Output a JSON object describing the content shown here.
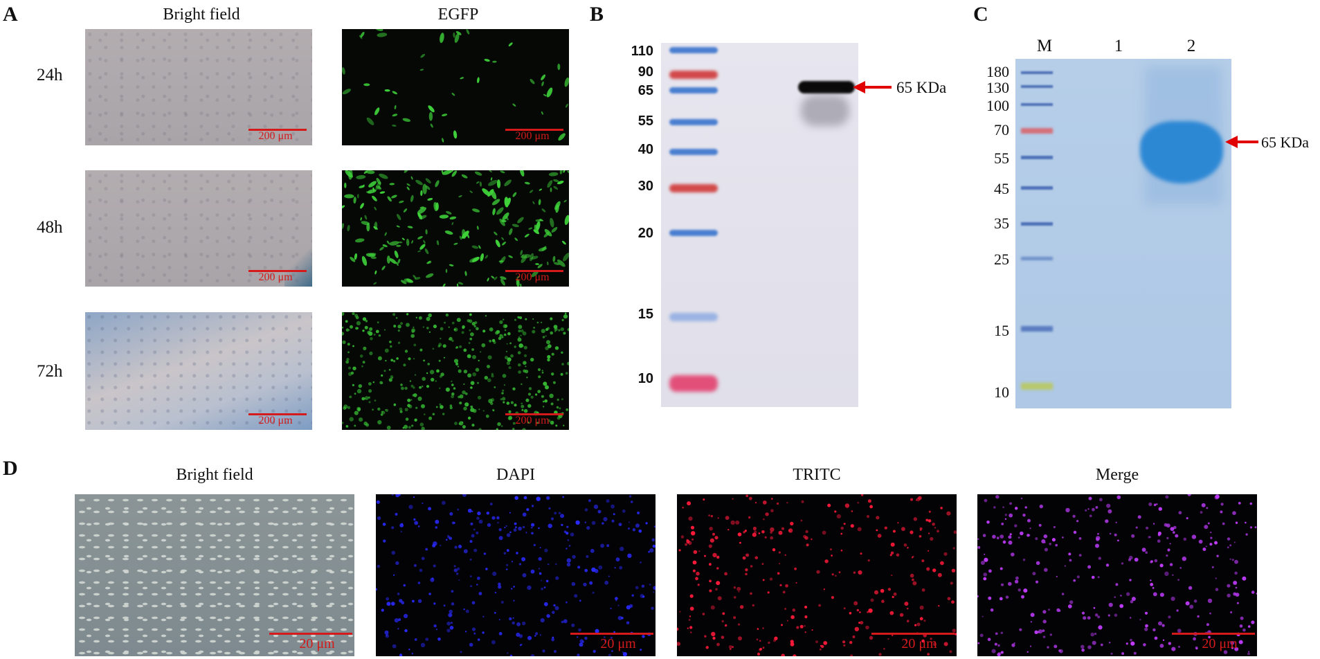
{
  "panels": {
    "A": {
      "letter": "A",
      "columns": [
        "Bright field",
        "EGFP"
      ],
      "rows": [
        "24h",
        "48h",
        "72h"
      ],
      "scale_bar": "200 μm"
    },
    "B": {
      "letter": "B",
      "markers": [
        "110",
        "90",
        "65",
        "55",
        "40",
        "30",
        "20",
        "15",
        "10"
      ],
      "band_label": "65 KDa"
    },
    "C": {
      "letter": "C",
      "lanes": [
        "M",
        "1",
        "2"
      ],
      "markers": [
        "180",
        "130",
        "100",
        "70",
        "55",
        "45",
        "35",
        "25",
        "15",
        "10"
      ],
      "band_label": "65 KDa"
    },
    "D": {
      "letter": "D",
      "columns": [
        "Bright field",
        "DAPI",
        "TRITC",
        "Merge"
      ],
      "scale_bar": "20 μm"
    }
  },
  "colors": {
    "scale_bar": "#d41a1a",
    "arrow": "#e00000",
    "egfp": "#3fd23a",
    "dapi": "#2a2aff",
    "tritc": "#ff1a3a",
    "merge": "#c23cff",
    "coomassie": "#2f8fd6"
  }
}
